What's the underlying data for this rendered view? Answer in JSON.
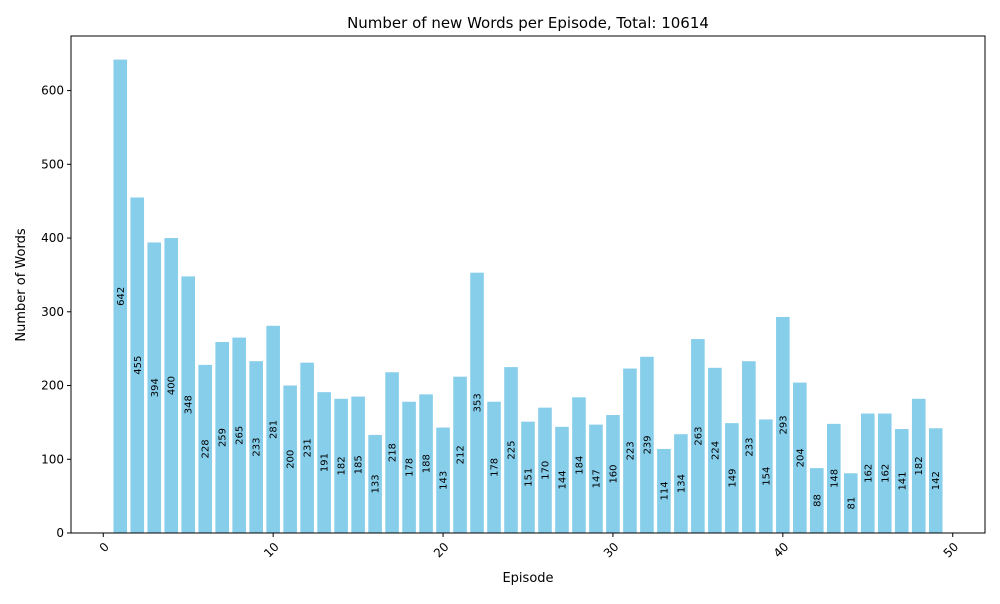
{
  "chart_data": {
    "type": "bar",
    "title": "Number of new Words per Episode, Total: 10614",
    "xlabel": "Episode",
    "ylabel": "Number of Words",
    "x": [
      1,
      2,
      3,
      4,
      5,
      6,
      7,
      8,
      9,
      10,
      11,
      12,
      13,
      14,
      15,
      16,
      17,
      18,
      19,
      20,
      21,
      22,
      23,
      24,
      25,
      26,
      27,
      28,
      29,
      30,
      31,
      32,
      33,
      34,
      35,
      36,
      37,
      38,
      39,
      40,
      41,
      42,
      43,
      44,
      45,
      46,
      47,
      48,
      49
    ],
    "values": [
      642,
      455,
      394,
      400,
      348,
      228,
      259,
      265,
      233,
      281,
      200,
      231,
      191,
      182,
      185,
      133,
      218,
      178,
      188,
      143,
      212,
      353,
      178,
      225,
      151,
      170,
      144,
      184,
      147,
      160,
      223,
      239,
      114,
      134,
      263,
      224,
      149,
      233,
      154,
      293,
      204,
      88,
      148,
      81,
      162,
      162,
      141,
      182,
      142
    ],
    "xlim": [
      -1.9,
      51.9
    ],
    "ylim": [
      0,
      674
    ],
    "xticks": [
      "0",
      "10",
      "20",
      "30",
      "40",
      "50"
    ],
    "yticks": [
      "0",
      "100",
      "200",
      "300",
      "400",
      "500",
      "600"
    ],
    "bar_color": "#87CEEB",
    "grid": false,
    "legend": "none"
  }
}
